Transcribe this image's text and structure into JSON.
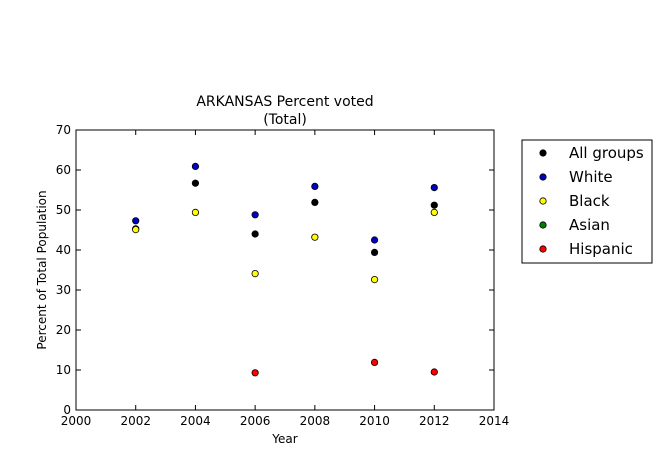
{
  "chart_data": {
    "type": "scatter",
    "title": "ARKANSAS Percent voted",
    "subtitle": "(Total)",
    "xlabel": "Year",
    "ylabel": "Percent of Total Population",
    "xlim": [
      2000,
      2014
    ],
    "ylim": [
      0,
      70
    ],
    "xticks": [
      2000,
      2002,
      2004,
      2006,
      2008,
      2010,
      2012,
      2014
    ],
    "yticks": [
      0,
      10,
      20,
      30,
      40,
      50,
      60,
      70
    ],
    "grid": false,
    "legend_position": "outside-right",
    "series": [
      {
        "name": "All groups",
        "color": "#000000",
        "points": [
          [
            2002,
            45.3
          ],
          [
            2004,
            56.7
          ],
          [
            2006,
            44.0
          ],
          [
            2008,
            51.9
          ],
          [
            2010,
            39.4
          ],
          [
            2012,
            51.2
          ]
        ]
      },
      {
        "name": "White",
        "color": "#0000bf",
        "points": [
          [
            2002,
            47.3
          ],
          [
            2004,
            60.9
          ],
          [
            2006,
            48.8
          ],
          [
            2008,
            55.9
          ],
          [
            2010,
            42.5
          ],
          [
            2012,
            55.6
          ]
        ]
      },
      {
        "name": "Black",
        "color": "#ffff00",
        "points": [
          [
            2002,
            45.1
          ],
          [
            2004,
            49.4
          ],
          [
            2006,
            34.1
          ],
          [
            2008,
            43.2
          ],
          [
            2010,
            32.6
          ],
          [
            2012,
            49.4
          ]
        ]
      },
      {
        "name": "Asian",
        "color": "#008000",
        "points": []
      },
      {
        "name": "Hispanic",
        "color": "#ff0000",
        "points": [
          [
            2006,
            9.3
          ],
          [
            2010,
            11.9
          ],
          [
            2012,
            9.5
          ]
        ]
      }
    ]
  }
}
